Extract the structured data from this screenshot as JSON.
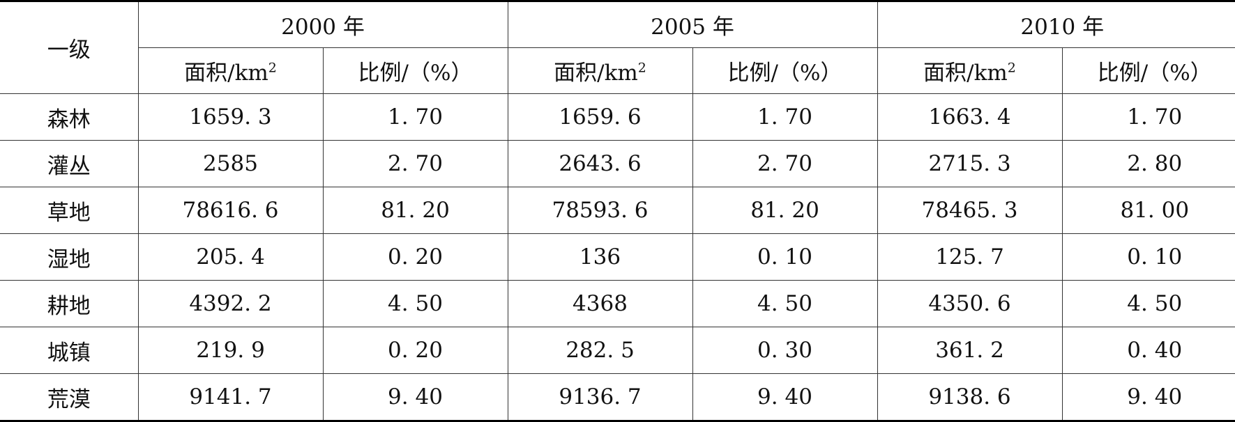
{
  "table": {
    "row_header": "一级",
    "years": [
      "2000 年",
      "2005 年",
      "2010 年"
    ],
    "area_header": "面积/km",
    "area_unit_sup": "2",
    "ratio_header": "比例/（%）",
    "rows": [
      {
        "label": "森林",
        "cells": [
          "1659. 3",
          "1. 70",
          "1659. 6",
          "1. 70",
          "1663. 4",
          "1. 70"
        ]
      },
      {
        "label": "灌丛",
        "cells": [
          "2585",
          "2. 70",
          "2643. 6",
          "2. 70",
          "2715. 3",
          "2. 80"
        ]
      },
      {
        "label": "草地",
        "cells": [
          "78616. 6",
          "81. 20",
          "78593. 6",
          "81. 20",
          "78465. 3",
          "81. 00"
        ]
      },
      {
        "label": "湿地",
        "cells": [
          "205. 4",
          "0. 20",
          "136",
          "0. 10",
          "125. 7",
          "0. 10"
        ]
      },
      {
        "label": "耕地",
        "cells": [
          "4392. 2",
          "4. 50",
          "4368",
          "4. 50",
          "4350. 6",
          "4. 50"
        ]
      },
      {
        "label": "城镇",
        "cells": [
          "219. 9",
          "0. 20",
          "282. 5",
          "0. 30",
          "361. 2",
          "0. 40"
        ]
      },
      {
        "label": "荒漠",
        "cells": [
          "9141. 7",
          "9. 40",
          "9136. 7",
          "9. 40",
          "9138. 6",
          "9. 40"
        ]
      }
    ]
  }
}
